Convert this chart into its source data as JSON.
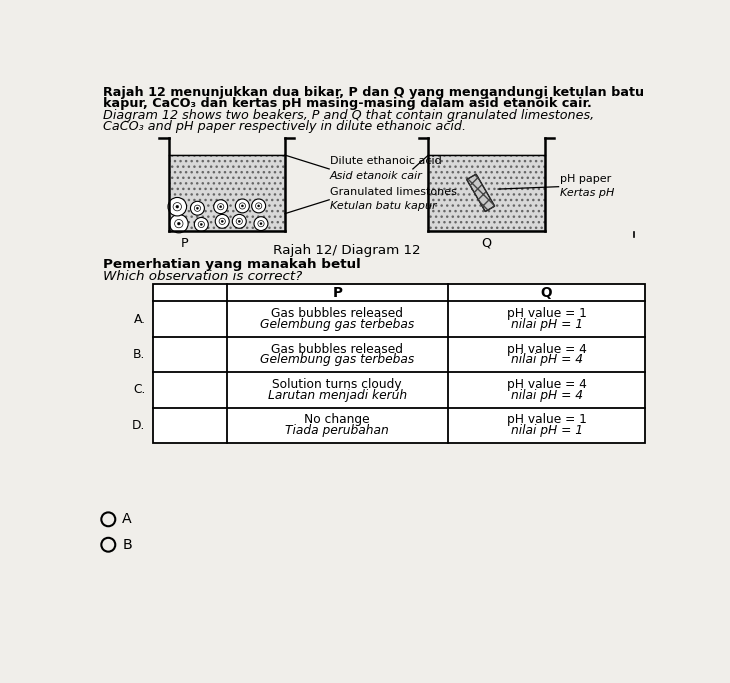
{
  "background_color": "#f0eeea",
  "title_text_line1": "Rajah 12 menunjukkan dua bikar, P dan Q yang mengandungi ketulan batu",
  "title_text_line2": "kapur, CaCO₃ dan kertas pH masing-masing dalam asid etanoik cair.",
  "title_text_line3": "Diagram 12 shows two beakers, P and Q that contain granulated limestones,",
  "title_text_line4": "CaCO₃ and pH paper respectively in dilute ethanoic acid.",
  "diagram_label": "Rajah 12/ Diagram 12",
  "beaker_P_label": "P",
  "beaker_Q_label": "Q",
  "label_dilute": "Dilute ethanoic acid",
  "label_asid": "Asid etanoik cair",
  "label_granulated": "Granulated limestones",
  "label_ketulan": "Ketulan batu kapur",
  "label_ph_paper": "pH paper",
  "label_kertas": "Kertas pH",
  "question_line1": "Pemerhatian yang manakah betul",
  "question_line2": "Which observation is correct?",
  "table_header_P": "P",
  "table_header_Q": "Q",
  "table_rows": [
    {
      "label": "A.",
      "P_line1": "Gas bubbles released",
      "P_line2": "Gelembung gas terbebas",
      "Q_line1": "pH value = 1",
      "Q_line2": "nilai pH = 1"
    },
    {
      "label": "B.",
      "P_line1": "Gas bubbles released",
      "P_line2": "Gelembung gas terbebas",
      "Q_line1": "pH value = 4",
      "Q_line2": "nilai pH = 4"
    },
    {
      "label": "C.",
      "P_line1": "Solution turns cloudy",
      "P_line2": "Larutan menjadi keruh",
      "Q_line1": "pH value = 4",
      "Q_line2": "nilai pH = 4"
    },
    {
      "label": "D.",
      "P_line1": "No change",
      "P_line2": "Tiada perubahan",
      "Q_line1": "pH value = 1",
      "Q_line2": "nilai pH = 1"
    }
  ],
  "option_A_label": "A",
  "option_B_label": "B",
  "font_size_title": 9.2,
  "font_size_body": 9.2,
  "font_size_table": 8.8,
  "text_color": "#000000"
}
